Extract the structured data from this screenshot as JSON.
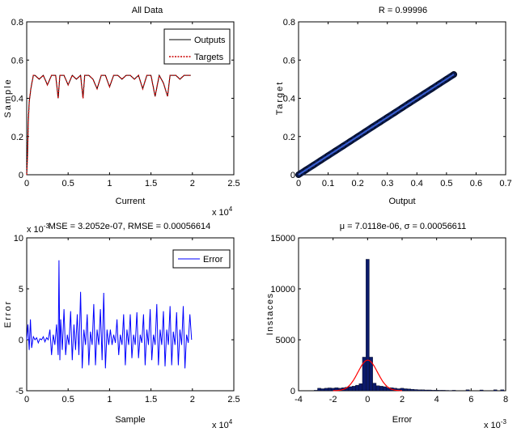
{
  "chart_data": [
    {
      "type": "line",
      "title": "All Data",
      "xlabel": "Current",
      "ylabel": "Sample",
      "x_multiplier": "x 10",
      "x_multiplier_exp": "4",
      "xlim": [
        0,
        25000
      ],
      "ylim": [
        0,
        0.8
      ],
      "xticks": [
        0,
        5000,
        10000,
        15000,
        20000,
        25000
      ],
      "xtick_labels": [
        "0",
        "0.5",
        "1",
        "1.5",
        "2",
        "2.5"
      ],
      "yticks": [
        0,
        0.2,
        0.4,
        0.6,
        0.8
      ],
      "ytick_labels": [
        "0",
        "0.2",
        "0.4",
        "0.6",
        "0.8"
      ],
      "legend_position": "top-right",
      "series": [
        {
          "name": "Outputs",
          "color": "#000000",
          "x": [
            0,
            100,
            200,
            300,
            500,
            800,
            1000,
            1500,
            2000,
            2500,
            3000,
            3500,
            3800,
            4000,
            4200,
            4500,
            5000,
            5500,
            6000,
            6500,
            6800,
            7000,
            7200,
            7500,
            8000,
            8500,
            9000,
            9500,
            10000,
            10500,
            11000,
            11500,
            12000,
            12500,
            13000,
            13500,
            14000,
            14500,
            15000,
            15500,
            16000,
            16500,
            17000,
            17300,
            17500,
            18000,
            18500,
            19000,
            19500,
            19800
          ],
          "y": [
            0,
            0.1,
            0.28,
            0.38,
            0.45,
            0.52,
            0.52,
            0.5,
            0.52,
            0.47,
            0.52,
            0.52,
            0.4,
            0.52,
            0.52,
            0.52,
            0.47,
            0.52,
            0.5,
            0.52,
            0.4,
            0.52,
            0.52,
            0.52,
            0.5,
            0.45,
            0.52,
            0.52,
            0.46,
            0.52,
            0.52,
            0.5,
            0.52,
            0.52,
            0.5,
            0.52,
            0.45,
            0.52,
            0.52,
            0.41,
            0.52,
            0.48,
            0.41,
            0.52,
            0.52,
            0.52,
            0.5,
            0.52,
            0.52,
            0.52
          ]
        },
        {
          "name": "Targets",
          "color": "#cc0000",
          "x": [
            0,
            100,
            200,
            300,
            500,
            800,
            1000,
            1500,
            2000,
            2500,
            3000,
            3500,
            3800,
            4000,
            4200,
            4500,
            5000,
            5500,
            6000,
            6500,
            6800,
            7000,
            7200,
            7500,
            8000,
            8500,
            9000,
            9500,
            10000,
            10500,
            11000,
            11500,
            12000,
            12500,
            13000,
            13500,
            14000,
            14500,
            15000,
            15500,
            16000,
            16500,
            17000,
            17300,
            17500,
            18000,
            18500,
            19000,
            19500,
            19800
          ],
          "y": [
            0,
            0.1,
            0.28,
            0.38,
            0.45,
            0.52,
            0.52,
            0.5,
            0.52,
            0.47,
            0.52,
            0.52,
            0.4,
            0.52,
            0.52,
            0.52,
            0.47,
            0.52,
            0.5,
            0.52,
            0.4,
            0.52,
            0.52,
            0.52,
            0.5,
            0.45,
            0.52,
            0.52,
            0.46,
            0.52,
            0.52,
            0.5,
            0.52,
            0.52,
            0.5,
            0.52,
            0.45,
            0.52,
            0.52,
            0.41,
            0.52,
            0.48,
            0.41,
            0.52,
            0.52,
            0.52,
            0.5,
            0.52,
            0.52,
            0.52
          ]
        }
      ]
    },
    {
      "type": "scatter",
      "title": "R = 0.99996",
      "xlabel": "Output",
      "ylabel": "Target",
      "xlim": [
        0,
        0.7
      ],
      "ylim": [
        0,
        0.8
      ],
      "xticks": [
        0,
        0.1,
        0.2,
        0.3,
        0.4,
        0.5,
        0.6,
        0.7
      ],
      "xtick_labels": [
        "0",
        "0.1",
        "0.2",
        "0.3",
        "0.4",
        "0.5",
        "0.6",
        "0.7"
      ],
      "yticks": [
        0,
        0.2,
        0.4,
        0.6,
        0.8
      ],
      "ytick_labels": [
        "0",
        "0.2",
        "0.4",
        "0.6",
        "0.8"
      ],
      "fit_line": {
        "x": [
          0,
          0.525
        ],
        "y": [
          0,
          0.525
        ],
        "color": "#3a5fd0"
      },
      "series": [
        {
          "color": "#0b1a4a",
          "x": [
            0,
            0.025,
            0.05,
            0.075,
            0.1,
            0.125,
            0.15,
            0.175,
            0.2,
            0.225,
            0.25,
            0.275,
            0.3,
            0.325,
            0.35,
            0.375,
            0.4,
            0.425,
            0.45,
            0.475,
            0.5,
            0.525
          ],
          "y": [
            0,
            0.025,
            0.05,
            0.075,
            0.1,
            0.125,
            0.15,
            0.175,
            0.2,
            0.225,
            0.25,
            0.275,
            0.3,
            0.325,
            0.35,
            0.375,
            0.4,
            0.425,
            0.45,
            0.475,
            0.5,
            0.525
          ]
        }
      ]
    },
    {
      "type": "line",
      "title": "MSE = 3.2052e-07, RMSE = 0.00056614",
      "xlabel": "Sample",
      "ylabel": "Error",
      "x_multiplier": "x 10",
      "x_multiplier_exp": "4",
      "y_multiplier": "x 10",
      "y_multiplier_exp": "-3",
      "xlim": [
        0,
        25000
      ],
      "ylim": [
        -5,
        10
      ],
      "xticks": [
        0,
        5000,
        10000,
        15000,
        20000,
        25000
      ],
      "xtick_labels": [
        "0",
        "0.5",
        "1",
        "1.5",
        "2",
        "2.5"
      ],
      "yticks": [
        -5,
        0,
        5,
        10
      ],
      "ytick_labels": [
        "-5",
        "0",
        "5",
        "10"
      ],
      "legend_position": "top-right",
      "series": [
        {
          "name": "Error",
          "color": "#0000ff",
          "x": [
            0,
            150,
            300,
            450,
            600,
            800,
            1000,
            1200,
            1400,
            1600,
            1800,
            2000,
            2200,
            2400,
            2600,
            2800,
            3000,
            3200,
            3400,
            3600,
            3800,
            3900,
            4000,
            4100,
            4300,
            4500,
            4700,
            4900,
            5100,
            5300,
            5500,
            5700,
            5900,
            6100,
            6300,
            6500,
            6700,
            6900,
            7100,
            7300,
            7500,
            7700,
            7900,
            8100,
            8300,
            8500,
            8700,
            8900,
            9100,
            9300,
            9500,
            9700,
            9900,
            10100,
            10300,
            10500,
            10700,
            10900,
            11100,
            11300,
            11500,
            11700,
            11900,
            12100,
            12300,
            12500,
            12700,
            12900,
            13100,
            13300,
            13500,
            13700,
            13900,
            14100,
            14300,
            14500,
            14700,
            14900,
            15100,
            15300,
            15500,
            15700,
            15900,
            16100,
            16300,
            16500,
            16700,
            16900,
            17100,
            17300,
            17500,
            17700,
            17900,
            18100,
            18300,
            18500,
            18700,
            18900,
            19100,
            19300,
            19500,
            19700,
            19900
          ],
          "y": [
            0,
            1.5,
            -1,
            2,
            -0.8,
            0.3,
            0,
            0.2,
            -0.3,
            0.1,
            0,
            0.3,
            -0.2,
            0.2,
            0,
            1,
            -1.5,
            0.5,
            -0.5,
            1.5,
            -1.5,
            7.8,
            -2,
            2,
            -1,
            3,
            -1.5,
            0.5,
            -0.5,
            2.8,
            -2,
            1.5,
            -1,
            2.5,
            -1.5,
            4.7,
            -2.8,
            1,
            -0.5,
            2.5,
            -2.5,
            0.8,
            -0.5,
            3.5,
            -2.5,
            1,
            -0.5,
            3,
            -2,
            4.6,
            -2.8,
            1,
            -0.5,
            1,
            -0.5,
            0.5,
            -0.3,
            2,
            -1.5,
            0.5,
            -0.5,
            2.5,
            -2.5,
            1,
            -0.5,
            2.5,
            -1.8,
            0.5,
            -0.5,
            2.7,
            -1.8,
            0.5,
            -0.3,
            2.5,
            -2.5,
            1,
            -0.5,
            3,
            -2,
            0.5,
            -0.5,
            3.5,
            -2.5,
            1,
            -0.5,
            2.8,
            -2.6,
            1,
            -0.5,
            3.3,
            -2.5,
            0.8,
            -0.5,
            2.7,
            -2.5,
            1,
            -0.5,
            3.3,
            -2.8,
            0.5,
            -0.3,
            2.5,
            0
          ]
        }
      ]
    },
    {
      "type": "bar",
      "title": "μ = 7.0118e-06, σ = 0.00056611",
      "xlabel": "Error",
      "ylabel": "Instaces",
      "x_multiplier": "x 10",
      "x_multiplier_exp": "-3",
      "xlim": [
        -4,
        8
      ],
      "ylim": [
        0,
        15000
      ],
      "xticks": [
        -4,
        -2,
        0,
        2,
        4,
        6,
        8
      ],
      "xtick_labels": [
        "-4",
        "-2",
        "0",
        "2",
        "4",
        "6",
        "8"
      ],
      "yticks": [
        0,
        5000,
        10000,
        15000
      ],
      "ytick_labels": [
        "0",
        "5000",
        "10000",
        "15000"
      ],
      "bar_color": "#0b1a6a",
      "bar_width": 0.2,
      "bins": [
        -3,
        -2.8,
        -2.6,
        -2.4,
        -2.2,
        -2,
        -1.8,
        -1.6,
        -1.4,
        -1.2,
        -1,
        -0.8,
        -0.6,
        -0.4,
        -0.2,
        0,
        0.2,
        0.4,
        0.6,
        0.8,
        1,
        1.2,
        1.4,
        1.6,
        1.8,
        2,
        2.2,
        2.4,
        2.6,
        2.8,
        3,
        3.2,
        3.4,
        3.6,
        3.8,
        4,
        4.2,
        4.4,
        4.6,
        4.8,
        5,
        5.8,
        6.6,
        7.4,
        7.8
      ],
      "counts": [
        50,
        250,
        200,
        250,
        280,
        250,
        300,
        250,
        300,
        350,
        400,
        450,
        550,
        700,
        3300,
        12900,
        3300,
        750,
        500,
        450,
        400,
        300,
        300,
        250,
        200,
        250,
        200,
        180,
        150,
        120,
        100,
        100,
        80,
        80,
        60,
        60,
        50,
        50,
        40,
        30,
        50,
        100,
        80,
        100,
        100
      ],
      "fit_curve": {
        "color": "#ff0000",
        "mean": 0.007,
        "sigma": 0.566,
        "peak": 3000
      }
    }
  ]
}
